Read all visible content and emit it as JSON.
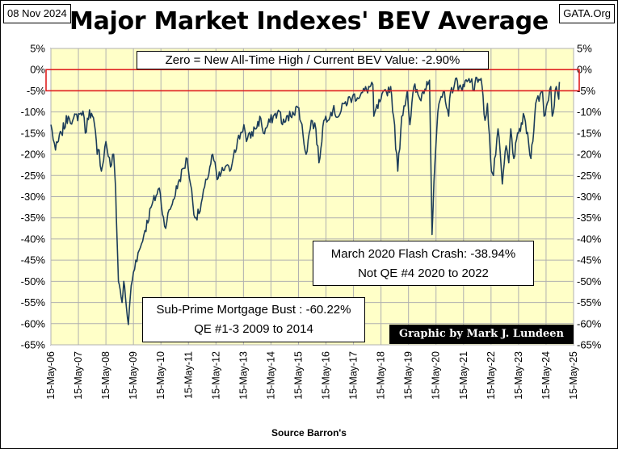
{
  "header": {
    "date": "08 Nov 2024",
    "source": "GATA.Org",
    "title": "Major Market Indexes' BEV Average"
  },
  "footer": {
    "xlabel": "Source Barron's"
  },
  "annotations": {
    "zero_line": "Zero = New All-Time High / Current BEV Value:  -2.90%",
    "covid_line1": "March 2020 Flash Crash:  -38.94%",
    "covid_line2": "Not QE #4 2020 to 2022",
    "subprime_line1": "Sub-Prime Mortgage Bust : -60.22%",
    "subprime_line2": "QE #1-3 2009 to 2014",
    "credit": "Graphic by Mark J. Lundeen"
  },
  "colors": {
    "plot_background": "#ffffc8",
    "line": "#1c3d5a",
    "highlight_box": "#e02020",
    "grid": "#b0b0b0"
  },
  "chart_data": {
    "type": "line",
    "title": "Major Market Indexes' BEV Average",
    "xlabel": "Source Barron's",
    "ylabel": "",
    "ylim": [
      -65,
      5
    ],
    "xlim": [
      "2006-05-15",
      "2025-05-15"
    ],
    "y_ticks": [
      "5%",
      "0%",
      "-5%",
      "-10%",
      "-15%",
      "-20%",
      "-25%",
      "-30%",
      "-35%",
      "-40%",
      "-45%",
      "-50%",
      "-55%",
      "-60%",
      "-65%"
    ],
    "y_tick_values": [
      5,
      0,
      -5,
      -10,
      -15,
      -20,
      -25,
      -30,
      -35,
      -40,
      -45,
      -50,
      -55,
      -60,
      -65
    ],
    "x_ticks": [
      "15-May-06",
      "15-May-07",
      "15-May-08",
      "15-May-09",
      "15-May-10",
      "15-May-11",
      "15-May-12",
      "15-May-13",
      "15-May-14",
      "15-May-15",
      "15-May-16",
      "15-May-17",
      "15-May-18",
      "15-May-19",
      "15-May-20",
      "15-May-21",
      "15-May-22",
      "15-May-23",
      "15-May-24",
      "15-May-25"
    ],
    "grid": true,
    "highlight_band": [
      -5,
      0
    ],
    "series": [
      {
        "x": [
          "2006-05-15",
          "2006-07-15",
          "2006-10-01",
          "2007-01-01",
          "2007-03-01",
          "2007-06-01",
          "2007-07-15",
          "2007-08-15",
          "2007-10-10",
          "2007-12-15",
          "2008-01-20",
          "2008-02-15",
          "2008-03-15",
          "2008-05-15",
          "2008-07-15",
          "2008-08-25",
          "2008-09-20",
          "2008-10-10",
          "2008-10-28",
          "2008-11-20",
          "2008-12-15",
          "2009-01-06",
          "2009-02-10",
          "2009-03-09",
          "2009-04-15",
          "2009-06-15",
          "2009-08-15",
          "2009-10-15",
          "2010-01-15",
          "2010-04-23",
          "2010-07-02",
          "2010-09-15",
          "2011-01-15",
          "2011-04-29",
          "2011-08-10",
          "2011-10-03",
          "2012-01-15",
          "2012-04-01",
          "2012-06-01",
          "2012-09-15",
          "2012-11-15",
          "2013-01-15",
          "2013-05-21",
          "2013-06-24",
          "2013-10-15",
          "2013-12-31",
          "2014-02-03",
          "2014-06-15",
          "2014-09-18",
          "2014-10-15",
          "2015-03-01",
          "2015-05-20",
          "2015-08-25",
          "2015-11-01",
          "2016-01-01",
          "2016-02-11",
          "2016-04-15",
          "2016-08-15",
          "2016-11-01",
          "2017-01-15",
          "2017-05-01",
          "2017-08-15",
          "2018-01-26",
          "2018-02-08",
          "2018-05-15",
          "2018-09-20",
          "2018-10-29",
          "2018-12-24",
          "2019-02-15",
          "2019-04-30",
          "2019-06-03",
          "2019-07-26",
          "2019-10-15",
          "2020-01-15",
          "2020-02-19",
          "2020-03-23",
          "2020-04-30",
          "2020-06-08",
          "2020-09-02",
          "2020-10-30",
          "2020-11-25",
          "2021-01-15",
          "2021-02-12",
          "2021-03-05",
          "2021-05-10",
          "2021-07-15",
          "2021-09-02",
          "2021-10-04",
          "2021-11-08",
          "2022-01-03",
          "2022-02-24",
          "2022-03-29",
          "2022-05-20",
          "2022-06-16",
          "2022-08-16",
          "2022-10-12",
          "2022-12-01",
          "2023-01-06",
          "2023-02-02",
          "2023-03-13",
          "2023-05-15",
          "2023-07-31",
          "2023-10-27",
          "2023-12-29",
          "2024-03-28",
          "2024-04-19",
          "2024-07-16",
          "2024-08-05",
          "2024-09-27",
          "2024-10-31",
          "2024-11-08"
        ],
        "values": [
          -13,
          -19,
          -15,
          -11,
          -12,
          -10.5,
          -9.8,
          -15,
          -9.5,
          -13,
          -20,
          -19,
          -24,
          -17,
          -23,
          -20,
          -28,
          -40,
          -50,
          -52,
          -55,
          -50,
          -56,
          -60.22,
          -51,
          -45,
          -42,
          -38,
          -32,
          -28,
          -37,
          -33,
          -26,
          -21,
          -35,
          -34,
          -26,
          -20,
          -26,
          -23,
          -24,
          -19,
          -13,
          -17,
          -14,
          -11.5,
          -15,
          -11,
          -10,
          -13,
          -10,
          -9,
          -20,
          -12,
          -14,
          -22,
          -12,
          -9.5,
          -11,
          -8,
          -6.5,
          -6,
          -3.5,
          -11,
          -7,
          -4,
          -11,
          -24,
          -11,
          -5,
          -13,
          -4,
          -7,
          -2.8,
          -2.5,
          -38.94,
          -22,
          -10,
          -5,
          -11,
          -5,
          -3.5,
          -2,
          -5,
          -3.5,
          -2.5,
          -2.2,
          -5,
          -1.9,
          -2.1,
          -12,
          -8,
          -24,
          -25,
          -14,
          -27,
          -18,
          -22,
          -14,
          -21,
          -15,
          -11,
          -21,
          -8,
          -5,
          -11,
          -4,
          -11,
          -4,
          -7,
          -2.9
        ]
      }
    ]
  }
}
